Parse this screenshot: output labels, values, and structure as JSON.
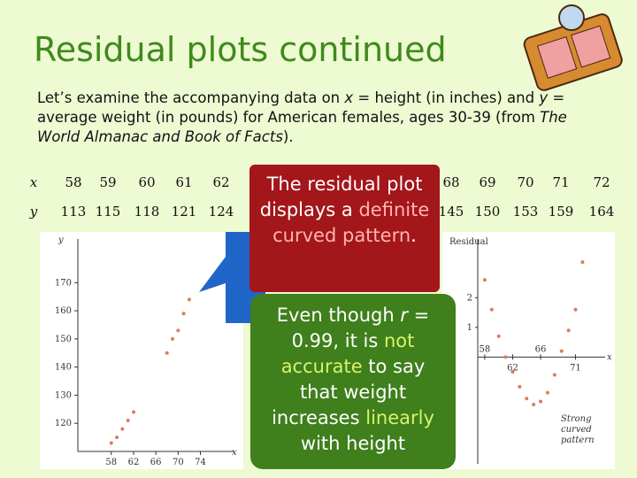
{
  "title": "Residual plots continued",
  "intro": [
    {
      "text": "Let’s examine the accompanying data on "
    },
    {
      "text": "x",
      "italic": true
    },
    {
      "text": " = height (in inches) and "
    },
    {
      "text": "y",
      "italic": true
    },
    {
      "text": " = average weight (in pounds) for American females, ages 30-39 (from "
    },
    {
      "text": "The World Almanac and Book of Facts",
      "italic": true
    },
    {
      "text": ")."
    }
  ],
  "table": {
    "row_labels": [
      "x",
      "y"
    ],
    "x": [
      58,
      59,
      60,
      61,
      62,
      68,
      69,
      70,
      71,
      72
    ],
    "y": [
      113,
      115,
      118,
      121,
      124,
      145,
      150,
      153,
      159,
      164
    ]
  },
  "scatter_plot": {
    "x_label": "x",
    "y_label": "y",
    "xlim": [
      52,
      79
    ],
    "ylim": [
      110,
      183
    ],
    "xticks": [
      58,
      62,
      66,
      70,
      74
    ],
    "yticks": [
      120,
      130,
      140,
      150,
      160,
      170
    ]
  },
  "residual_plot": {
    "x_label": "x",
    "y_label": "Residual",
    "xlim": [
      57,
      76
    ],
    "ylim": [
      -3.6,
      3.8
    ],
    "xticks": [
      58,
      62,
      66,
      71
    ],
    "yticks": [
      1,
      2
    ],
    "x": [
      58,
      59,
      60,
      61,
      62,
      63,
      64,
      65,
      66,
      67,
      68,
      69,
      70,
      71,
      72
    ],
    "values": [
      2.6,
      1.6,
      0.7,
      0.0,
      -0.5,
      -1.0,
      -1.4,
      -1.6,
      -1.5,
      -1.2,
      -0.6,
      0.2,
      0.9,
      1.6,
      3.2
    ],
    "annotation": [
      "Strong",
      "curved",
      "pattern"
    ]
  },
  "callout_red": [
    {
      "text": "The residual plot displays a "
    },
    {
      "text": "definite curved pattern",
      "highlight": true
    },
    {
      "text": "."
    }
  ],
  "callout_green": [
    {
      "text": "Even though "
    },
    {
      "text": "r",
      "italic": true
    },
    {
      "text": " = 0.99, it is "
    },
    {
      "text": "not",
      "highlight": true
    },
    {
      "text": " "
    },
    {
      "text": "accurate",
      "highlight": true
    },
    {
      "text": " to say that weight increases "
    },
    {
      "text": "linearly",
      "highlight": true
    },
    {
      "text": " with height"
    }
  ]
}
